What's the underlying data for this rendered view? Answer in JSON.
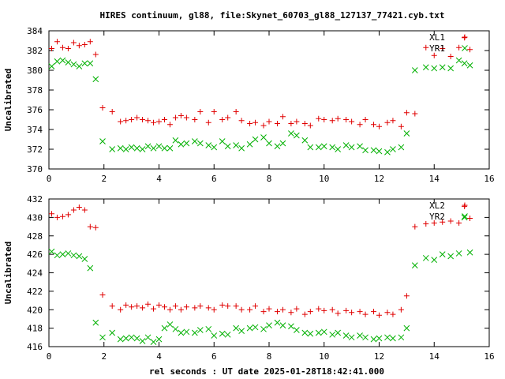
{
  "title": "HIRES continuum, gl88, file:Skynet_60703_gl88_127137_77421.cyb.txt",
  "xlabel": "rel seconds : UT date 2025-01-28T18:42:41.000",
  "colors": {
    "red": "#e00000",
    "green": "#00b000",
    "frame": "#000000"
  },
  "chart_data": [
    {
      "type": "scatter",
      "ylabel": "Uncalibrated",
      "xlim": [
        0,
        16
      ],
      "ylim": [
        370,
        384
      ],
      "xticks": [
        0,
        2,
        4,
        6,
        8,
        10,
        12,
        14,
        16
      ],
      "yticks": [
        370,
        372,
        374,
        376,
        378,
        380,
        382,
        384
      ],
      "series": [
        {
          "name": "XL1",
          "marker": "plus",
          "color": "#e00000",
          "x": [
            0.1,
            0.3,
            0.5,
            0.7,
            0.9,
            1.1,
            1.3,
            1.5,
            1.7,
            1.95,
            2.3,
            2.6,
            2.8,
            3.0,
            3.2,
            3.4,
            3.6,
            3.8,
            4.0,
            4.2,
            4.4,
            4.6,
            4.8,
            5.0,
            5.3,
            5.5,
            5.8,
            6.0,
            6.3,
            6.5,
            6.8,
            7.0,
            7.3,
            7.5,
            7.8,
            8.0,
            8.3,
            8.5,
            8.8,
            9.0,
            9.3,
            9.5,
            9.8,
            10.0,
            10.3,
            10.5,
            10.8,
            11.0,
            11.3,
            11.5,
            11.8,
            12.0,
            12.3,
            12.5,
            12.8,
            13.0,
            13.3,
            13.7,
            14.0,
            14.3,
            14.6,
            14.9,
            15.1,
            15.3
          ],
          "y": [
            382.2,
            382.9,
            382.3,
            382.2,
            382.8,
            382.5,
            382.6,
            382.9,
            381.6,
            376.2,
            375.8,
            374.8,
            374.9,
            375.0,
            375.2,
            375.0,
            374.9,
            374.7,
            374.8,
            375.0,
            374.5,
            375.2,
            375.4,
            375.2,
            375.0,
            375.8,
            374.7,
            375.8,
            375.0,
            375.2,
            375.8,
            374.9,
            374.6,
            374.7,
            374.4,
            374.8,
            374.6,
            375.3,
            374.6,
            374.8,
            374.6,
            374.4,
            375.1,
            375.0,
            374.9,
            375.1,
            375.0,
            374.8,
            374.5,
            375.0,
            374.5,
            374.3,
            374.7,
            374.9,
            374.3,
            375.7,
            375.6,
            382.3,
            381.5,
            382.2,
            381.4,
            382.3,
            383.3,
            382.1
          ]
        },
        {
          "name": "YR1",
          "marker": "cross",
          "color": "#00b000",
          "x": [
            0.1,
            0.3,
            0.5,
            0.7,
            0.9,
            1.1,
            1.3,
            1.5,
            1.7,
            1.95,
            2.3,
            2.6,
            2.8,
            3.0,
            3.2,
            3.4,
            3.6,
            3.8,
            4.0,
            4.2,
            4.4,
            4.6,
            4.8,
            5.0,
            5.3,
            5.5,
            5.8,
            6.0,
            6.3,
            6.5,
            6.8,
            7.0,
            7.3,
            7.5,
            7.8,
            8.0,
            8.3,
            8.5,
            8.8,
            9.0,
            9.3,
            9.5,
            9.8,
            10.0,
            10.3,
            10.5,
            10.8,
            11.0,
            11.3,
            11.5,
            11.8,
            12.0,
            12.3,
            12.5,
            12.8,
            13.0,
            13.3,
            13.7,
            14.0,
            14.3,
            14.6,
            14.9,
            15.1,
            15.3
          ],
          "y": [
            380.4,
            380.9,
            381.0,
            380.8,
            380.6,
            380.4,
            380.7,
            380.7,
            379.1,
            372.8,
            372.0,
            372.1,
            372.0,
            372.2,
            372.1,
            372.0,
            372.3,
            372.1,
            372.3,
            372.1,
            372.1,
            372.9,
            372.5,
            372.6,
            372.8,
            372.6,
            372.4,
            372.2,
            372.8,
            372.3,
            372.4,
            372.1,
            372.5,
            373.0,
            373.2,
            372.6,
            372.3,
            372.6,
            373.6,
            373.4,
            372.9,
            372.2,
            372.2,
            372.3,
            372.2,
            372.0,
            372.4,
            372.2,
            372.3,
            371.9,
            371.9,
            371.8,
            371.7,
            372.0,
            372.2,
            373.6,
            380.0,
            380.3,
            380.2,
            380.3,
            380.2,
            381.0,
            380.7,
            380.5
          ]
        }
      ]
    },
    {
      "type": "scatter",
      "ylabel": "Uncalibrated",
      "xlim": [
        0,
        16
      ],
      "ylim": [
        416,
        432
      ],
      "xticks": [
        0,
        2,
        4,
        6,
        8,
        10,
        12,
        14,
        16
      ],
      "yticks": [
        416,
        418,
        420,
        422,
        424,
        426,
        428,
        430,
        432
      ],
      "series": [
        {
          "name": "XL2",
          "marker": "plus",
          "color": "#e00000",
          "x": [
            0.1,
            0.3,
            0.5,
            0.7,
            0.9,
            1.1,
            1.3,
            1.5,
            1.7,
            1.95,
            2.3,
            2.6,
            2.8,
            3.0,
            3.2,
            3.4,
            3.6,
            3.8,
            4.0,
            4.2,
            4.4,
            4.6,
            4.8,
            5.0,
            5.3,
            5.5,
            5.8,
            6.0,
            6.3,
            6.5,
            6.8,
            7.0,
            7.3,
            7.5,
            7.8,
            8.0,
            8.3,
            8.5,
            8.8,
            9.0,
            9.3,
            9.5,
            9.8,
            10.0,
            10.3,
            10.5,
            10.8,
            11.0,
            11.3,
            11.5,
            11.8,
            12.0,
            12.3,
            12.5,
            12.8,
            13.0,
            13.3,
            13.7,
            14.0,
            14.3,
            14.6,
            14.9,
            15.1,
            15.3
          ],
          "y": [
            430.4,
            430.0,
            430.1,
            430.3,
            430.8,
            431.1,
            430.8,
            429.0,
            428.9,
            421.6,
            420.4,
            420.0,
            420.5,
            420.3,
            420.4,
            420.2,
            420.6,
            420.1,
            420.5,
            420.3,
            420.0,
            420.4,
            420.0,
            420.3,
            420.2,
            420.4,
            420.2,
            420.0,
            420.5,
            420.4,
            420.4,
            420.0,
            420.0,
            420.4,
            419.8,
            420.1,
            419.8,
            420.0,
            419.7,
            420.1,
            419.5,
            419.8,
            420.1,
            419.9,
            420.0,
            419.6,
            419.9,
            419.7,
            419.8,
            419.5,
            419.8,
            419.4,
            419.7,
            419.5,
            420.0,
            421.5,
            429.0,
            429.3,
            429.4,
            429.5,
            429.6,
            429.4,
            431.2,
            429.9
          ]
        },
        {
          "name": "YR2",
          "marker": "cross",
          "color": "#00b000",
          "x": [
            0.1,
            0.3,
            0.5,
            0.7,
            0.9,
            1.1,
            1.3,
            1.5,
            1.7,
            1.95,
            2.3,
            2.6,
            2.8,
            3.0,
            3.2,
            3.4,
            3.6,
            3.8,
            4.0,
            4.2,
            4.4,
            4.6,
            4.8,
            5.0,
            5.3,
            5.5,
            5.8,
            6.0,
            6.3,
            6.5,
            6.8,
            7.0,
            7.3,
            7.5,
            7.8,
            8.0,
            8.3,
            8.5,
            8.8,
            9.0,
            9.3,
            9.5,
            9.8,
            10.0,
            10.3,
            10.5,
            10.8,
            11.0,
            11.3,
            11.5,
            11.8,
            12.0,
            12.3,
            12.5,
            12.8,
            13.0,
            13.3,
            13.7,
            14.0,
            14.3,
            14.6,
            14.9,
            15.1,
            15.3
          ],
          "y": [
            426.3,
            425.9,
            426.0,
            426.1,
            425.9,
            425.8,
            425.5,
            424.5,
            418.6,
            417.0,
            417.5,
            416.8,
            416.9,
            417.0,
            416.9,
            416.6,
            417.0,
            416.5,
            416.8,
            418.0,
            418.4,
            417.9,
            417.5,
            417.6,
            417.5,
            417.8,
            417.9,
            417.2,
            417.4,
            417.3,
            418.0,
            417.7,
            418.0,
            418.1,
            417.9,
            418.3,
            418.6,
            418.3,
            418.2,
            417.8,
            417.5,
            417.4,
            417.5,
            417.6,
            417.3,
            417.5,
            417.2,
            417.0,
            417.2,
            417.0,
            416.8,
            416.9,
            417.0,
            416.9,
            417.0,
            418.0,
            424.8,
            425.6,
            425.4,
            426.0,
            425.8,
            426.1,
            430.0,
            426.2
          ]
        }
      ]
    }
  ]
}
